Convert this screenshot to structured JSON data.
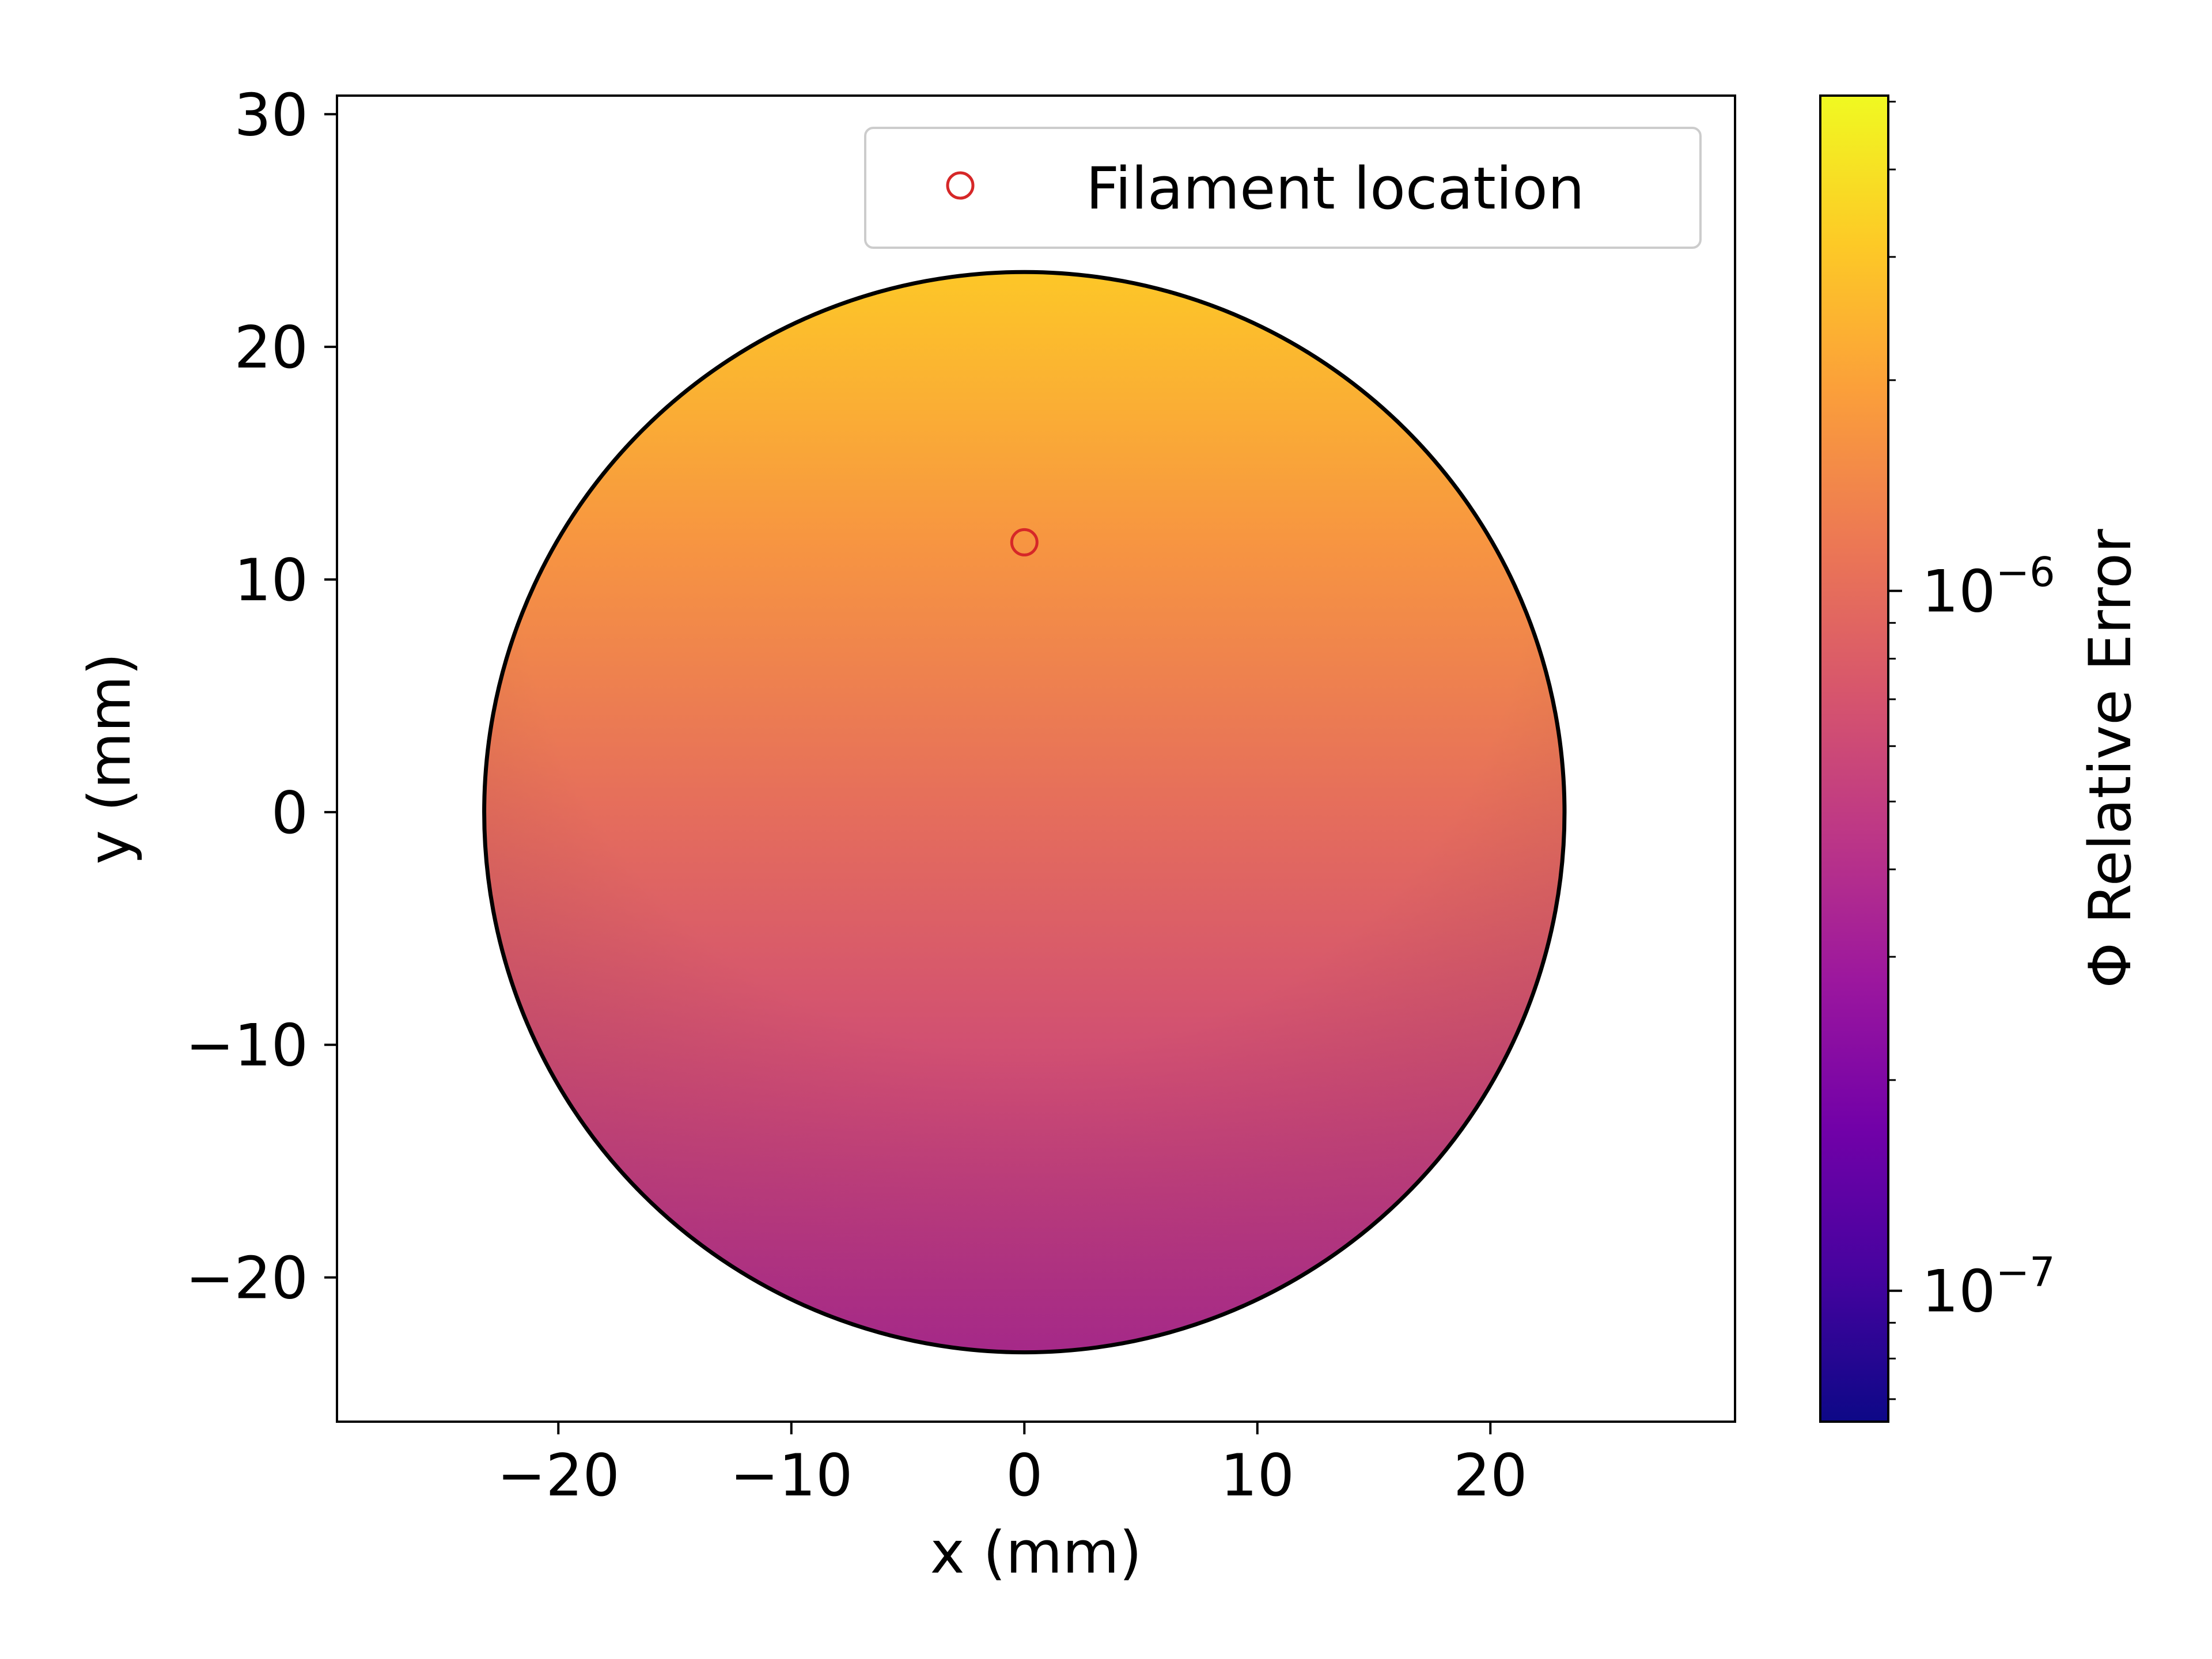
{
  "chart_data": {
    "type": "heatmap",
    "xlabel": "x (mm)",
    "ylabel": "y (mm)",
    "xlim": [
      -29.5,
      30.5
    ],
    "ylim": [
      -26.2,
      30.8
    ],
    "x_ticks": [
      -20,
      -10,
      0,
      10,
      20
    ],
    "x_tick_labels": [
      "−20",
      "−10",
      "0",
      "10",
      "20"
    ],
    "y_ticks": [
      -20,
      -10,
      0,
      10,
      20,
      30
    ],
    "y_tick_labels": [
      "−20",
      "−10",
      "0",
      "10",
      "20",
      "30"
    ],
    "grid": false,
    "domain_circle": {
      "center": [
        0,
        0
      ],
      "radius": 23.2,
      "edge_color": "#000000"
    },
    "field": {
      "description_values": "log-scale relative error across disk, increasing toward top",
      "samples": [
        {
          "x": 0,
          "y": 23,
          "value": 3e-06
        },
        {
          "x": 0,
          "y": 11.6,
          "value": 1.7e-06
        },
        {
          "x": 0,
          "y": 0,
          "value": 1e-06
        },
        {
          "x": 0,
          "y": -12,
          "value": 6e-07
        },
        {
          "x": 0,
          "y": -23,
          "value": 3.8e-07
        }
      ]
    },
    "markers": [
      {
        "name": "Filament location",
        "x": 0,
        "y": 11.6,
        "style": "open-circle",
        "color": "#d62728"
      }
    ],
    "legend": {
      "placement": "upper-right",
      "entries": [
        "Filament location"
      ]
    },
    "colorbar": {
      "label": "Φ Relative Error",
      "scale": "log",
      "colormap": "plasma",
      "range": [
        6.5e-08,
        5.1e-06
      ],
      "major_ticks": [
        {
          "value": 1e-07,
          "base": "10",
          "exponent": "−7"
        },
        {
          "value": 1e-06,
          "base": "10",
          "exponent": "−6"
        }
      ],
      "minor_ticks": [
        7e-08,
        8e-08,
        9e-08,
        2e-07,
        3e-07,
        4e-07,
        5e-07,
        6e-07,
        7e-07,
        8e-07,
        9e-07,
        2e-06,
        3e-06,
        4e-06,
        5e-06
      ]
    },
    "colors": {
      "plasma_stops": [
        "#0d0887",
        "#46039f",
        "#7201a8",
        "#9c179e",
        "#bd3786",
        "#d8576b",
        "#ed7953",
        "#fb9f3a",
        "#fdca26",
        "#f0f921"
      ]
    }
  }
}
